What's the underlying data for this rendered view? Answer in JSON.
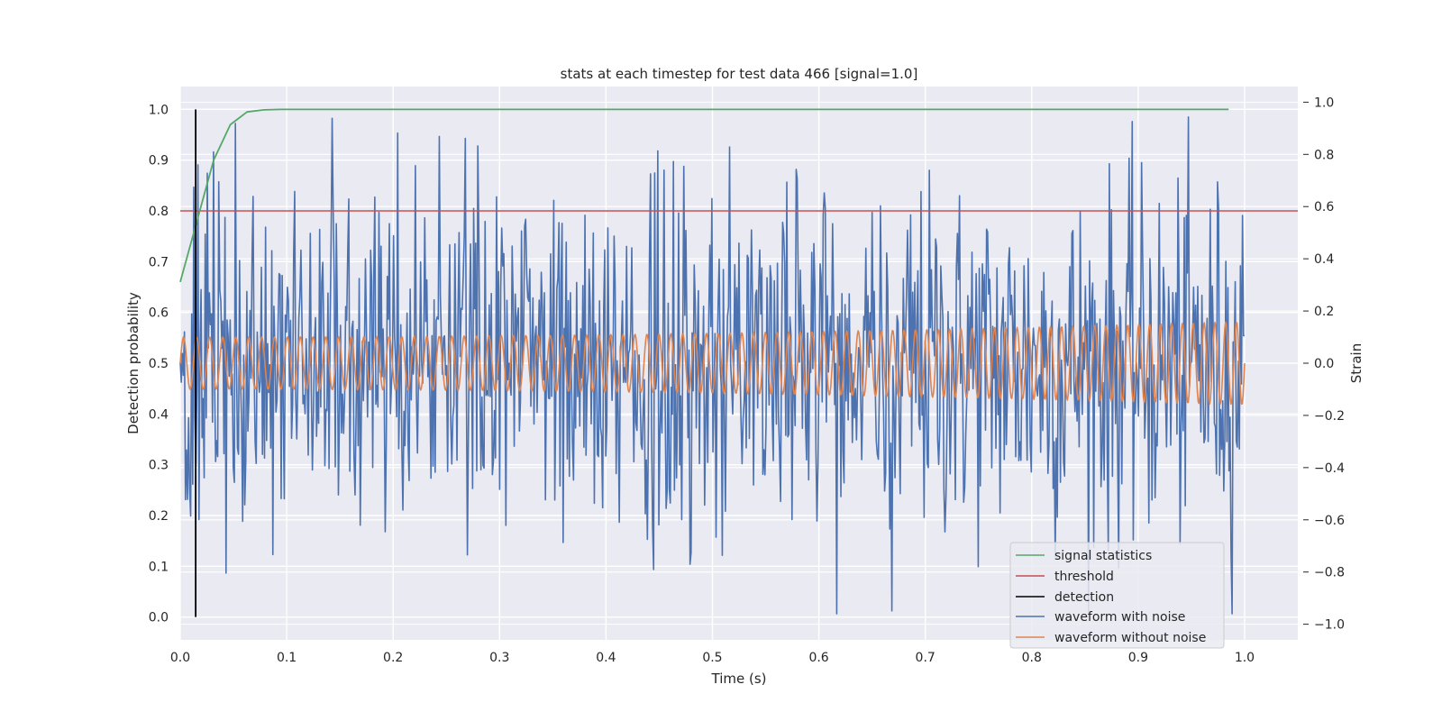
{
  "chart_data": {
    "type": "line",
    "title": "stats at each timestep for test data 466 [signal=1.0]",
    "xlabel": "Time (s)",
    "ylabel_left": "Detection probability",
    "ylabel_right": "Strain",
    "xlim": [
      0.0,
      1.05
    ],
    "ylim_left": [
      -0.045,
      1.045
    ],
    "ylim_right": [
      -1.06,
      1.06
    ],
    "x_ticks": [
      0.0,
      0.1,
      0.2,
      0.3,
      0.4,
      0.5,
      0.6,
      0.7,
      0.8,
      0.9,
      1.0
    ],
    "x_tick_labels": [
      "0.0",
      "0.1",
      "0.2",
      "0.3",
      "0.4",
      "0.5",
      "0.6",
      "0.7",
      "0.8",
      "0.9",
      "1.0"
    ],
    "y_left_ticks": [
      0.0,
      0.1,
      0.2,
      0.3,
      0.4,
      0.5,
      0.6,
      0.7,
      0.8,
      0.9,
      1.0
    ],
    "y_left_tick_labels": [
      "0.0",
      "0.1",
      "0.2",
      "0.3",
      "0.4",
      "0.5",
      "0.6",
      "0.7",
      "0.8",
      "0.9",
      "1.0"
    ],
    "y_right_ticks": [
      1.0,
      0.8,
      0.6,
      0.4,
      0.2,
      0.0,
      -0.2,
      -0.4,
      -0.6,
      -0.8,
      -1.0
    ],
    "y_right_tick_labels": [
      "1.0",
      "0.8",
      "0.6",
      "0.4",
      "0.2",
      "0.0",
      "−0.2",
      "−0.4",
      "−0.6",
      "−0.8",
      "−1.0"
    ],
    "grid": true,
    "legend_position": "bottom-right",
    "series": [
      {
        "name": "signal statistics",
        "axis": "left",
        "color": "#55a868",
        "x": [
          0.0,
          0.0157,
          0.0314,
          0.0471,
          0.0628,
          0.0785,
          0.0942,
          0.2,
          0.4,
          0.6,
          0.8,
          0.985
        ],
        "y": [
          0.66,
          0.78,
          0.9,
          0.97,
          0.995,
          0.999,
          1.0,
          1.0,
          1.0,
          1.0,
          1.0,
          1.0
        ]
      },
      {
        "name": "threshold",
        "axis": "left",
        "color": "#c44e52",
        "x": [
          0.0,
          1.05
        ],
        "y": [
          0.8,
          0.8
        ]
      },
      {
        "name": "detection",
        "axis": "left",
        "color": "#000000",
        "x": [
          0.0145,
          0.0145
        ],
        "y": [
          0.0,
          1.0
        ]
      },
      {
        "name": "waveform with noise",
        "axis": "right",
        "color": "#4c72b0",
        "x_range": [
          0.0,
          1.0
        ],
        "approx_std": 0.34,
        "approx_min": -0.96,
        "approx_max": 1.0
      },
      {
        "name": "waveform without noise",
        "axis": "right",
        "color": "#dd8452",
        "x_range": [
          0.0,
          1.0
        ],
        "amplitude_start": 0.1,
        "amplitude_end": 0.16,
        "approx_cycles": 90
      }
    ]
  }
}
